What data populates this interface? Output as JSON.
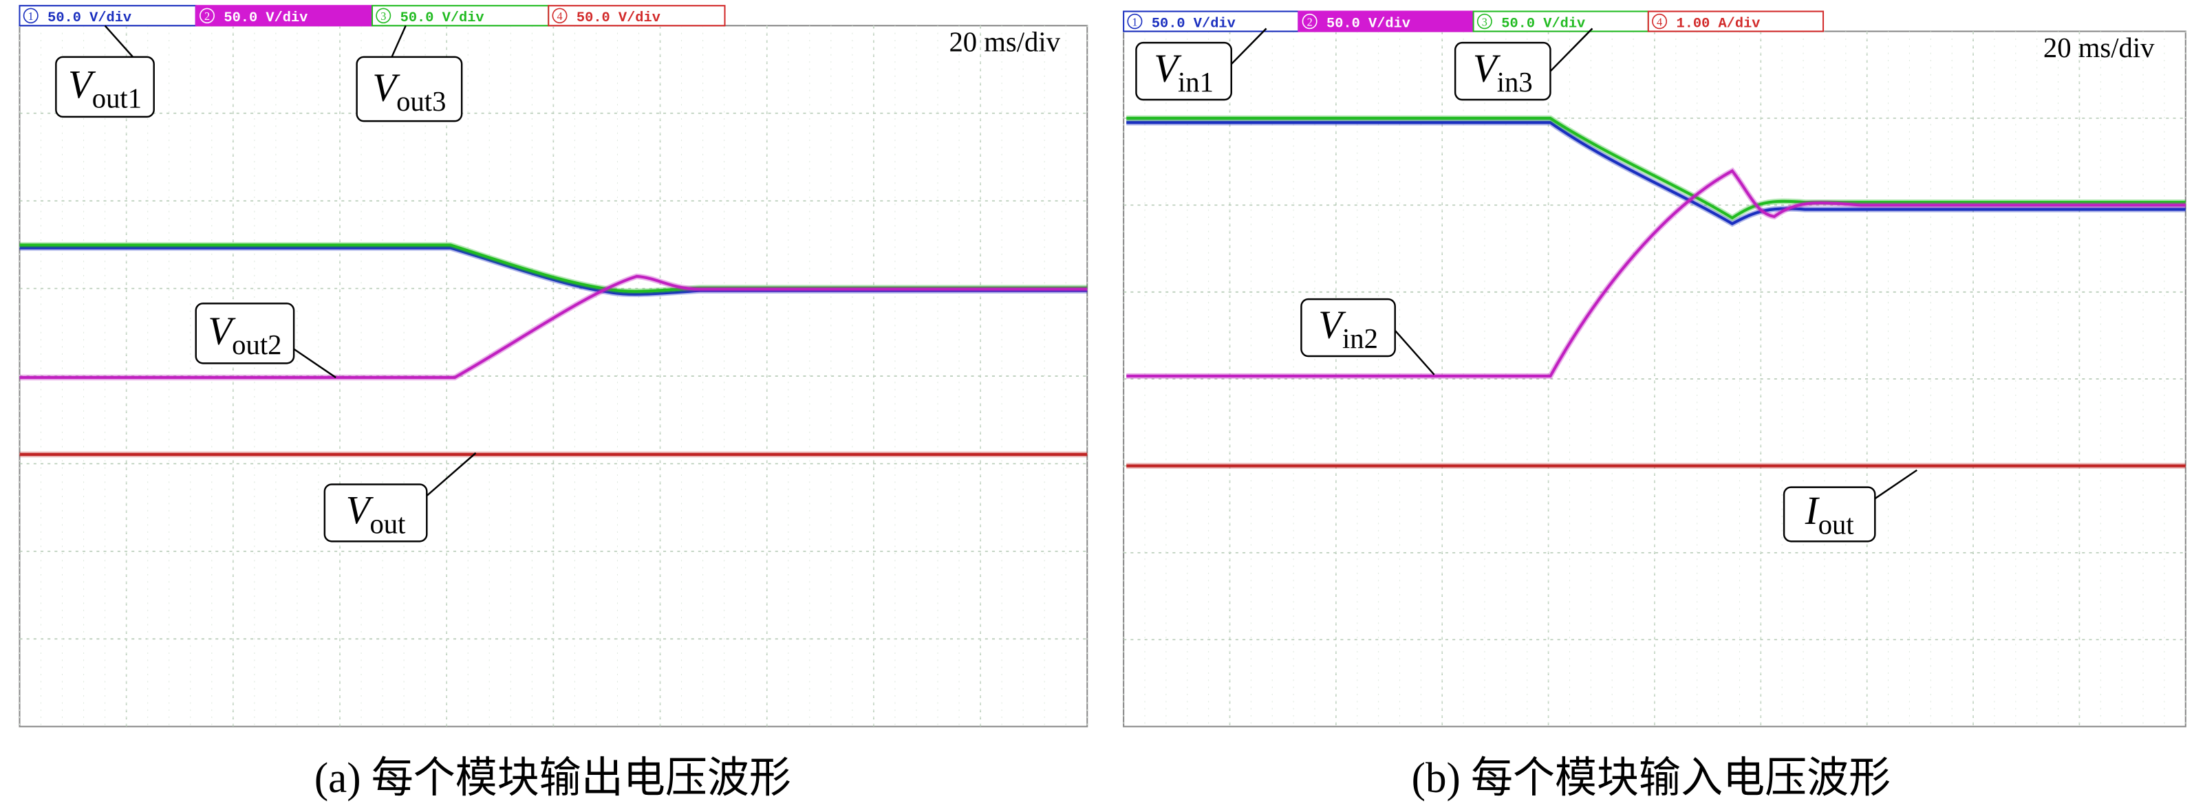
{
  "panels": [
    {
      "channels": [
        {
          "number": "1",
          "scale": "50.0 V/div"
        },
        {
          "number": "2",
          "scale": "50.0 V/div"
        },
        {
          "number": "3",
          "scale": "50.0 V/div"
        },
        {
          "number": "4",
          "scale": "50.0 V/div"
        }
      ],
      "timebase": "20 ms/div",
      "labels": [
        {
          "main": "V",
          "sub": "out1"
        },
        {
          "main": "V",
          "sub": "out3"
        },
        {
          "main": "V",
          "sub": "out2"
        },
        {
          "main": "V",
          "sub": "out"
        }
      ],
      "caption": "(a) 每个模块输出电压波形"
    },
    {
      "channels": [
        {
          "number": "1",
          "scale": "50.0 V/div"
        },
        {
          "number": "2",
          "scale": "50.0 V/div"
        },
        {
          "number": "3",
          "scale": "50.0 V/div"
        },
        {
          "number": "4",
          "scale": "1.00 A/div"
        }
      ],
      "timebase": "20 ms/div",
      "labels": [
        {
          "main": "V",
          "sub": "in1"
        },
        {
          "main": "V",
          "sub": "in3"
        },
        {
          "main": "V",
          "sub": "in2"
        },
        {
          "main": "I",
          "sub": "out"
        }
      ],
      "caption": "(b) 每个模块输入电压波形"
    }
  ]
}
